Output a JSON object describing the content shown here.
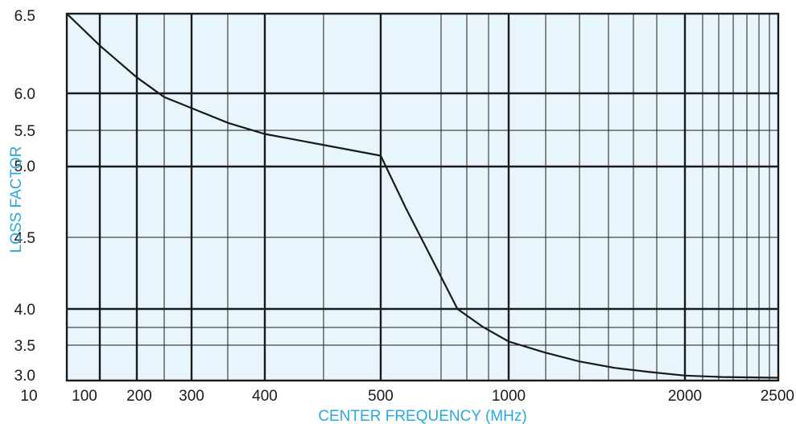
{
  "chart_data": {
    "type": "line",
    "title": "",
    "xlabel": "CENTER FREQUENCY (MHz)",
    "ylabel": "LOSS FACTOR",
    "x_tick_labels": [
      "10",
      "100",
      "200",
      "300",
      "400",
      "500",
      "1000",
      "2000",
      "2500"
    ],
    "y_tick_labels": [
      "3.0",
      "3.5",
      "4.0",
      "4.5",
      "5.0",
      "5.5",
      "6.0",
      "6.5"
    ],
    "x_scale": "nonlinear (tick spacing compressed at high frequencies)",
    "xlim": [
      10,
      2500
    ],
    "ylim": [
      3.0,
      6.5
    ],
    "grid": true,
    "series": [
      {
        "x": [
          10,
          100,
          150,
          200,
          250,
          300,
          350,
          400,
          450,
          500,
          600,
          700,
          800,
          900,
          1000,
          1200,
          1400,
          1600,
          1800,
          2000,
          2200,
          2500
        ],
        "values": [
          6.5,
          6.3,
          6.2,
          6.1,
          5.95,
          5.8,
          5.6,
          5.45,
          5.3,
          5.15,
          4.7,
          4.35,
          4.0,
          3.75,
          3.55,
          3.4,
          3.27,
          3.18,
          3.12,
          3.07,
          3.05,
          3.04
        ]
      }
    ],
    "colors": {
      "plot_background": "#e8f5fc",
      "grid": "#1a1a1a",
      "curve": "#1a1a1a",
      "axis_title": "#29a9e0",
      "tick_label": "#1a1a1a"
    }
  }
}
